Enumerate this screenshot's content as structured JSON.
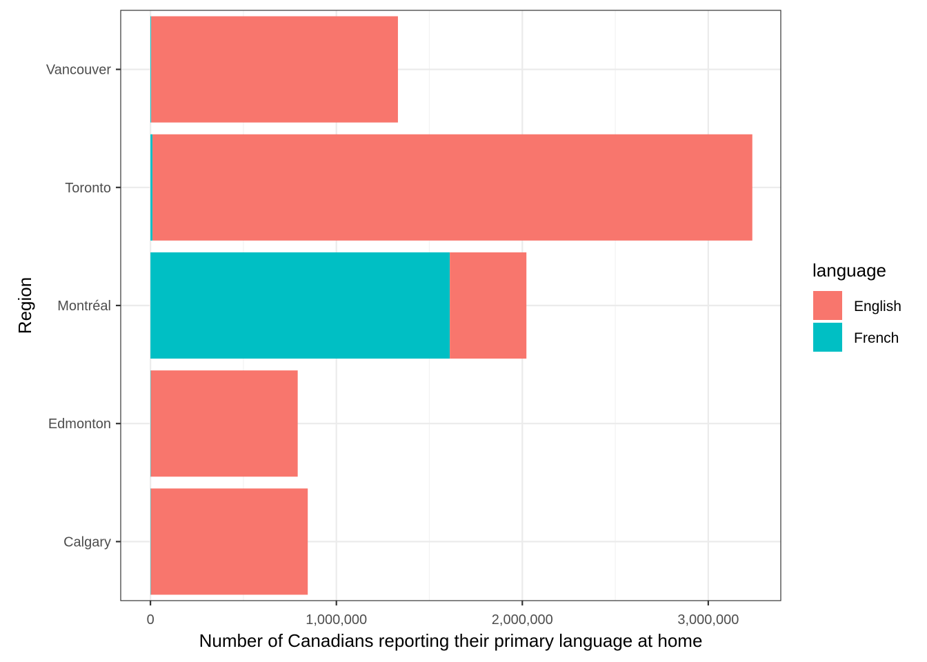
{
  "chart_data": {
    "type": "bar",
    "orientation": "horizontal",
    "stacked": true,
    "categories": [
      "Calgary",
      "Edmonton",
      "Montréal",
      "Toronto",
      "Vancouver"
    ],
    "series": [
      {
        "name": "English",
        "color": "#F8766D",
        "values": [
          844000,
          790000,
          412000,
          3226000,
          1327000
        ]
      },
      {
        "name": "French",
        "color": "#00BFC4",
        "values": [
          2000,
          2000,
          1610000,
          11000,
          4000
        ]
      }
    ],
    "xlabel": "Number of Canadians reporting their primary language at home",
    "ylabel": "Region",
    "xlim": [
      -160000,
      3390000
    ],
    "xticks": [
      0,
      1000000,
      2000000,
      3000000
    ],
    "xtick_labels": [
      "0",
      "1,000,000",
      "2,000,000",
      "3,000,000"
    ],
    "legend": {
      "title": "language",
      "position": "right"
    },
    "grid": true,
    "theme": "bw"
  }
}
